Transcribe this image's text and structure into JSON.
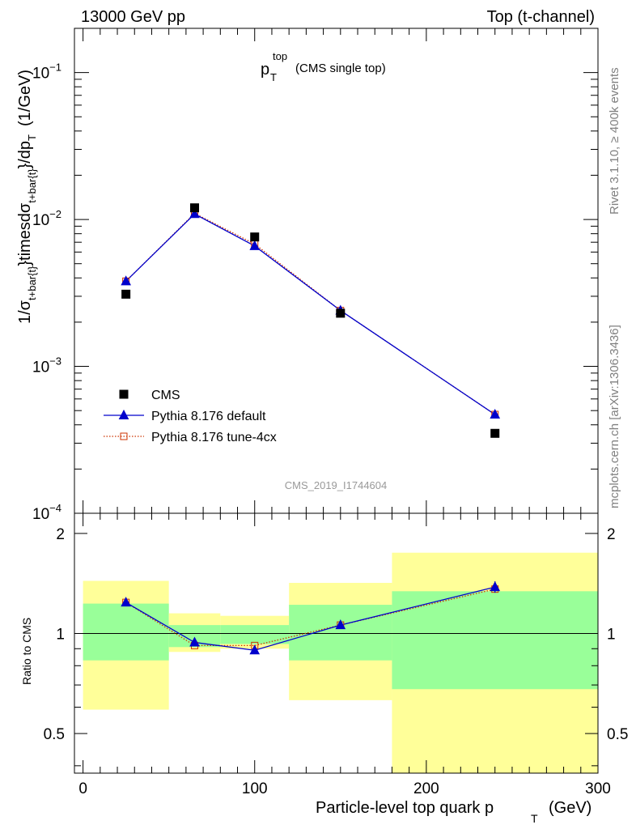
{
  "header": {
    "left": "13000 GeV pp",
    "right": "Top (t-channel)"
  },
  "side_labels": {
    "rivet": "Rivet 3.1.10, ≥ 400k events",
    "mcplots": "mcplots.cern.ch [arXiv:1306.3436]"
  },
  "plot_title": {
    "main": "p",
    "sup": "top",
    "sub": "T",
    "note": "(CMS single top)"
  },
  "watermark": "CMS_2019_I1744604",
  "ylabel": {
    "p1": "1/σ",
    "s1": "t+bar{t}",
    "p2": "}timesdσ",
    "s2": "t+bar{t}",
    "p3": "}/dp",
    "s3": "T",
    "p4": "(1/GeV)"
  },
  "ratio_ylabel": "Ratio to CMS",
  "xlabel": {
    "main": "Particle-level top quark p",
    "sub": "T",
    "unit": "(GeV)"
  },
  "colors": {
    "data": "#000000",
    "pythia_default": "#0000cc",
    "pythia_tune": "#cc3300",
    "band_inner": "#99ff99",
    "band_outer": "#ffff99"
  },
  "chart_data": [
    {
      "type": "scatter",
      "panel": "main",
      "xlim": [
        -5,
        300
      ],
      "ylim": [
        0.0001,
        0.2
      ],
      "ylog": true,
      "yticks": [
        {
          "value": 0.1,
          "base": "10",
          "exp": "−1"
        },
        {
          "value": 0.01,
          "base": "10",
          "exp": "−2"
        },
        {
          "value": 0.001,
          "base": "10",
          "exp": "−3"
        },
        {
          "value": 0.0001,
          "base": "10",
          "exp": "−4"
        }
      ],
      "series": [
        {
          "name": "CMS",
          "style": "square",
          "x": [
            25,
            65,
            100,
            150,
            240
          ],
          "y": [
            0.0031,
            0.012,
            0.0076,
            0.0023,
            0.00035
          ]
        },
        {
          "name": "Pythia 8.176 default",
          "style": "triangle-line",
          "x": [
            25,
            65,
            100,
            150,
            240
          ],
          "y": [
            0.0038,
            0.0109,
            0.0066,
            0.0024,
            0.00047
          ]
        },
        {
          "name": "Pythia 8.176 tune-4cx",
          "style": "open-square-dotted",
          "x": [
            25,
            65,
            100,
            150,
            240
          ],
          "y": [
            0.0038,
            0.011,
            0.0068,
            0.0024,
            0.00047
          ]
        }
      ]
    },
    {
      "type": "area",
      "panel": "ratio",
      "xlim": [
        -5,
        300
      ],
      "ylim": [
        0.38,
        2.3
      ],
      "ylog": true,
      "xticks": [
        0,
        100,
        200,
        300
      ],
      "yticks": [
        {
          "value": 0.5,
          "label": "0.5"
        },
        {
          "value": 1,
          "label": "1"
        },
        {
          "value": 2,
          "label": "2"
        }
      ],
      "bins": [
        {
          "lo": 0,
          "hi": 50,
          "inner": [
            0.83,
            1.23
          ],
          "outer": [
            0.59,
            1.44
          ]
        },
        {
          "lo": 50,
          "hi": 80,
          "inner": [
            0.91,
            1.06
          ],
          "outer": [
            0.88,
            1.15
          ]
        },
        {
          "lo": 80,
          "hi": 120,
          "inner": [
            0.93,
            1.06
          ],
          "outer": [
            0.9,
            1.13
          ]
        },
        {
          "lo": 120,
          "hi": 180,
          "inner": [
            0.83,
            1.22
          ],
          "outer": [
            0.63,
            1.42
          ]
        },
        {
          "lo": 180,
          "hi": 300,
          "inner": [
            0.68,
            1.34
          ],
          "outer": [
            0.38,
            1.75
          ]
        }
      ],
      "series": [
        {
          "name": "Pythia 8.176 default",
          "style": "triangle-line",
          "x": [
            25,
            65,
            100,
            150,
            240
          ],
          "y": [
            1.24,
            0.94,
            0.89,
            1.06,
            1.38
          ]
        },
        {
          "name": "Pythia 8.176 tune-4cx",
          "style": "open-square-dotted",
          "x": [
            25,
            65,
            100,
            150,
            240
          ],
          "y": [
            1.24,
            0.92,
            0.92,
            1.06,
            1.36
          ]
        }
      ]
    }
  ]
}
